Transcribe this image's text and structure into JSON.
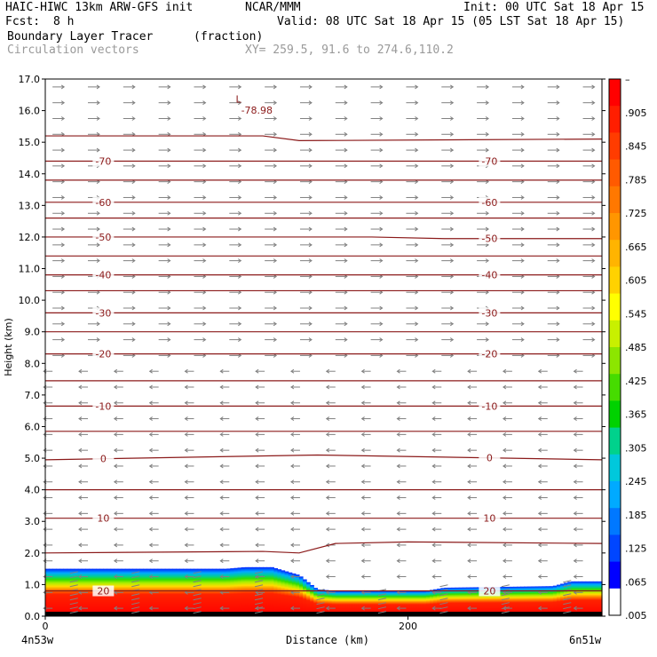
{
  "header": {
    "model": "HAIC-HIWC 13km ARW-GFS init",
    "org": "NCAR/MMM",
    "init": "Init: 00 UTC Sat 18 Apr 15",
    "fcst_label": "Fcst:",
    "fcst_value": "8 h",
    "valid": "Valid: 08 UTC Sat 18 Apr 15 (05 LST Sat 18 Apr 15)",
    "field1_name": "Boundary Layer Tracer",
    "field1_units": "(fraction)",
    "field2_name": "Circulation vectors",
    "xy": "XY= 259.5, 91.6 to 274.6,110.2"
  },
  "footer": {
    "left_location": "4n53w",
    "right_location": "6n51w"
  },
  "chart_data": {
    "type": "heatmap",
    "xlabel": "Distance (km)",
    "ylabel": "Height (km)",
    "xlim": [
      0,
      307
    ],
    "ylim": [
      0,
      17
    ],
    "x_ticks": [
      "0",
      "200"
    ],
    "x_tick_values": [
      0,
      200
    ],
    "y_ticks": [
      "0.0",
      "1.0",
      "2.0",
      "3.0",
      "4.0",
      "5.0",
      "6.0",
      "7.0",
      "8.0",
      "9.0",
      "10.0",
      "11.0",
      "12.0",
      "13.0",
      "14.0",
      "15.0",
      "16.0",
      "17.0"
    ],
    "colorbar": {
      "labels": [
        "–",
        ".905",
        ".845",
        ".785",
        ".725",
        ".665",
        ".605",
        ".545",
        ".485",
        ".425",
        ".365",
        ".305",
        ".245",
        ".185",
        ".125",
        ".065",
        ".005"
      ],
      "colors": [
        "#ff0000",
        "#ff1e00",
        "#ff3c00",
        "#ff5a00",
        "#ff7800",
        "#ff9600",
        "#ffb400",
        "#ffd200",
        "#ffff00",
        "#c8f000",
        "#8ce600",
        "#46dc00",
        "#00d200",
        "#00d28c",
        "#00c8dc",
        "#00aaff",
        "#0078ff",
        "#0046ff",
        "#0000ff",
        "#ffffff"
      ]
    },
    "tracer_top": [
      [
        0,
        1.5
      ],
      [
        40,
        1.5
      ],
      [
        100,
        1.5
      ],
      [
        110,
        1.55
      ],
      [
        125,
        1.55
      ],
      [
        140,
        1.3
      ],
      [
        150,
        0.85
      ],
      [
        160,
        0.8
      ],
      [
        210,
        0.8
      ],
      [
        220,
        0.9
      ],
      [
        280,
        0.95
      ],
      [
        290,
        1.1
      ],
      [
        307,
        1.1
      ]
    ],
    "isotherms": [
      {
        "values": [
          [
            0,
            15.2
          ],
          [
            120,
            15.2
          ],
          [
            140,
            15.05
          ],
          [
            307,
            15.1
          ]
        ]
      },
      {
        "label": "-70",
        "values": [
          [
            0,
            14.4
          ],
          [
            307,
            14.4
          ]
        ]
      },
      {
        "values": [
          [
            0,
            13.8
          ],
          [
            307,
            13.8
          ]
        ]
      },
      {
        "label": "-60",
        "values": [
          [
            0,
            13.1
          ],
          [
            307,
            13.1
          ]
        ]
      },
      {
        "values": [
          [
            0,
            12.6
          ],
          [
            307,
            12.6
          ]
        ]
      },
      {
        "label": "-50",
        "values": [
          [
            0,
            12.0
          ],
          [
            180,
            12.0
          ],
          [
            220,
            11.95
          ],
          [
            307,
            11.95
          ]
        ]
      },
      {
        "values": [
          [
            0,
            11.4
          ],
          [
            307,
            11.4
          ]
        ]
      },
      {
        "label": "-40",
        "values": [
          [
            0,
            10.8
          ],
          [
            307,
            10.8
          ]
        ]
      },
      {
        "values": [
          [
            0,
            10.3
          ],
          [
            307,
            10.3
          ]
        ]
      },
      {
        "label": "-30",
        "values": [
          [
            0,
            9.6
          ],
          [
            307,
            9.6
          ]
        ]
      },
      {
        "values": [
          [
            0,
            9.0
          ],
          [
            307,
            9.0
          ]
        ]
      },
      {
        "label": "-20",
        "values": [
          [
            0,
            8.3
          ],
          [
            307,
            8.3
          ]
        ]
      },
      {
        "values": [
          [
            0,
            7.45
          ],
          [
            307,
            7.45
          ]
        ]
      },
      {
        "label": "-10",
        "values": [
          [
            0,
            6.65
          ],
          [
            307,
            6.65
          ]
        ]
      },
      {
        "values": [
          [
            0,
            5.85
          ],
          [
            307,
            5.85
          ]
        ]
      },
      {
        "label": "0",
        "values": [
          [
            0,
            4.95
          ],
          [
            100,
            5.05
          ],
          [
            150,
            5.1
          ],
          [
            307,
            4.95
          ]
        ]
      },
      {
        "values": [
          [
            0,
            4.0
          ],
          [
            307,
            4.0
          ]
        ]
      },
      {
        "label": "10",
        "values": [
          [
            0,
            3.1
          ],
          [
            307,
            3.1
          ]
        ]
      },
      {
        "values": [
          [
            0,
            2.0
          ],
          [
            120,
            2.05
          ],
          [
            140,
            2.0
          ],
          [
            160,
            2.3
          ],
          [
            200,
            2.35
          ],
          [
            307,
            2.3
          ]
        ]
      },
      {
        "label": "20",
        "values": [
          [
            0,
            0.8
          ],
          [
            307,
            0.8
          ]
        ]
      }
    ],
    "annotations": [
      {
        "text": "L",
        "x": 105,
        "y": 16.25
      },
      {
        "text": "-78.98",
        "x": 108,
        "y": 15.9
      }
    ]
  }
}
